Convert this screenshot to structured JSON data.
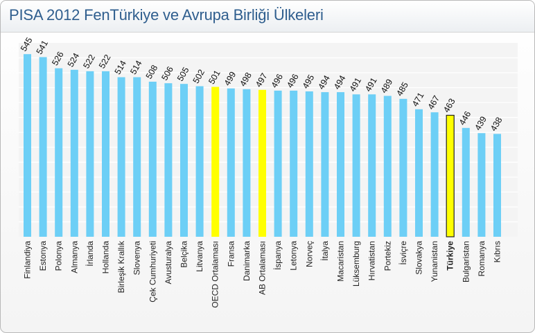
{
  "title": "PISA 2012 FenTürkiye ve Avrupa Birliği Ülkeleri",
  "colors": {
    "bar": "#6dcff6",
    "highlight": "#ffff00",
    "grid": "#ffffff",
    "plot_bg": "#f4f4f4"
  },
  "chart_data": {
    "type": "bar",
    "title": "PISA 2012 FenTürkiye ve Avrupa Birliği Ülkeleri",
    "xlabel": "",
    "ylabel": "",
    "ylim": [
      300,
      560
    ],
    "grid": true,
    "categories": [
      "Finlandiya",
      "Estonya",
      "Polonya",
      "Almanya",
      "İrlanda",
      "Hollanda",
      "Birleşik Krallık",
      "Slovenya",
      "Çek Cumhuriyeti",
      "Avusturalya",
      "Belçika",
      "Litvanya",
      "OECD Ortalaması",
      "Fransa",
      "Danimarka",
      "AB Ortalaması",
      "İspanya",
      "Letonya",
      "Norveç",
      "İtalya",
      "Macaristan",
      "Lüksemburg",
      "Hırvatistan",
      "Portekiz",
      "İsviçre",
      "Slovakya",
      "Yunanistan",
      "Türkiye",
      "Bulgaristan",
      "Romanya",
      "Kıbrıs"
    ],
    "values": [
      545,
      541,
      526,
      524,
      522,
      522,
      514,
      514,
      508,
      506,
      505,
      502,
      501,
      499,
      498,
      497,
      496,
      496,
      495,
      494,
      494,
      491,
      491,
      489,
      485,
      471,
      467,
      463,
      446,
      439,
      438
    ],
    "highlight_yellow": [
      "OECD Ortalaması",
      "AB Ortalaması"
    ],
    "highlight_outlined": [
      "Türkiye"
    ]
  }
}
